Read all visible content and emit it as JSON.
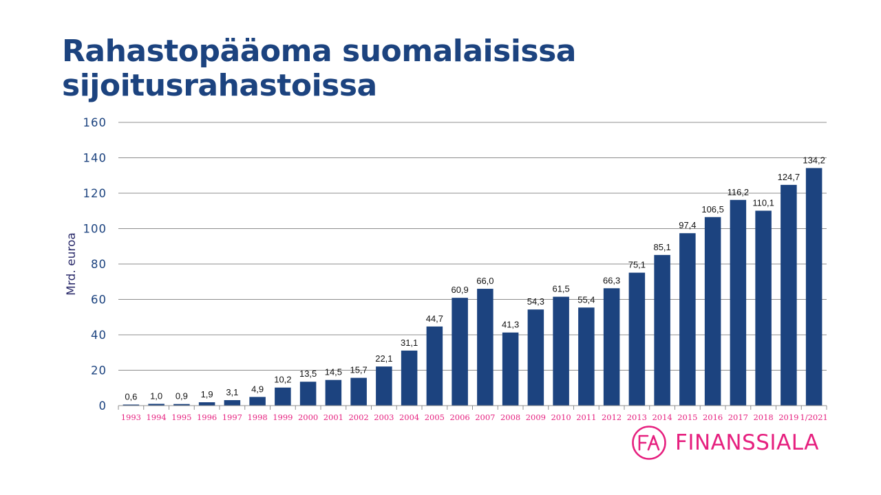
{
  "title_lines": [
    "Rahastopääoma suomalaisissa",
    "sijoitusrahastoissa"
  ],
  "brand": {
    "name": "FINANSSIALA",
    "color": "#e6207f",
    "logo_icon": "fa-circle-logo-icon"
  },
  "chart_data": {
    "type": "bar",
    "ylabel": "Mrd. euroa",
    "xlabel": "",
    "ylim": [
      0,
      160
    ],
    "yticks": [
      0,
      20,
      40,
      60,
      80,
      100,
      120,
      140,
      160
    ],
    "ytick_labels": [
      "0",
      "20",
      "40",
      "60",
      "80",
      "100",
      "120",
      "140",
      "160"
    ],
    "grid": true,
    "bar_color": "#1c437f",
    "categories": [
      "1993",
      "1994",
      "1995",
      "1996",
      "1997",
      "1998",
      "1999",
      "2000",
      "2001",
      "2002",
      "2003",
      "2004",
      "2005",
      "2006",
      "2007",
      "2008",
      "2009",
      "2010",
      "2011",
      "2012",
      "2013",
      "2014",
      "2015",
      "2016",
      "2017",
      "2018",
      "2019",
      "1/2021"
    ],
    "values": [
      0.6,
      1.0,
      0.9,
      1.9,
      3.1,
      4.9,
      10.2,
      13.5,
      14.5,
      15.7,
      22.1,
      31.1,
      44.7,
      60.9,
      66.0,
      41.3,
      54.3,
      61.5,
      55.4,
      66.3,
      75.1,
      85.1,
      97.4,
      106.5,
      116.2,
      110.1,
      124.7,
      134.2
    ],
    "value_labels": [
      "0,6",
      "1,0",
      "0,9",
      "1,9",
      "3,1",
      "4,9",
      "10,2",
      "13,5",
      "14,5",
      "15,7",
      "22,1",
      "31,1",
      "44,7",
      "60,9",
      "66,0",
      "41,3",
      "54,3",
      "61,5",
      "55,4",
      "66,3",
      "75,1",
      "85,1",
      "97,4",
      "106,5",
      "116,2",
      "110,1",
      "124,7",
      "134,2"
    ]
  }
}
